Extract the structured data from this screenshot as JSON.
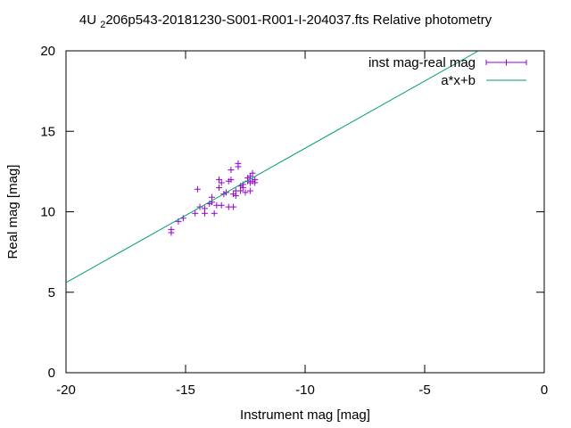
{
  "chart_data": {
    "type": "scatter",
    "title": {
      "prefix": "4U",
      "subscript": "2",
      "suffix": "206p543-20181230-S001-R001-I-204037.fts Relative photometry"
    },
    "xlabel": "Instrument mag [mag]",
    "ylabel": "Real mag [mag]",
    "xlim": [
      -20,
      0
    ],
    "ylim": [
      0,
      20
    ],
    "xticks": [
      -20,
      -15,
      -10,
      -5,
      0
    ],
    "yticks": [
      0,
      5,
      10,
      15,
      20
    ],
    "xtick_labels": [
      "-20",
      "-15",
      "-10",
      "-5",
      "0"
    ],
    "ytick_labels": [
      "0",
      "5",
      "10",
      "15",
      "20"
    ],
    "grid": false,
    "legend_position": "top-right",
    "series": [
      {
        "name": "inst mag-real mag",
        "kind": "points",
        "color": "#9400d3",
        "marker": "plus",
        "points": [
          [
            -15.6,
            8.9
          ],
          [
            -15.6,
            8.7
          ],
          [
            -15.3,
            9.4
          ],
          [
            -15.1,
            9.6
          ],
          [
            -14.6,
            9.9
          ],
          [
            -14.5,
            11.4
          ],
          [
            -14.4,
            10.3
          ],
          [
            -14.2,
            9.9
          ],
          [
            -14.2,
            10.2
          ],
          [
            -14.0,
            10.5
          ],
          [
            -13.9,
            10.6
          ],
          [
            -13.9,
            10.9
          ],
          [
            -13.8,
            9.9
          ],
          [
            -13.7,
            10.4
          ],
          [
            -13.6,
            11.5
          ],
          [
            -13.6,
            12.0
          ],
          [
            -13.5,
            11.8
          ],
          [
            -13.5,
            10.4
          ],
          [
            -13.4,
            11.1
          ],
          [
            -13.3,
            11.2
          ],
          [
            -13.2,
            11.9
          ],
          [
            -13.2,
            10.3
          ],
          [
            -13.1,
            12.0
          ],
          [
            -13.1,
            12.6
          ],
          [
            -13.0,
            11.1
          ],
          [
            -13.0,
            10.3
          ],
          [
            -12.9,
            11.0
          ],
          [
            -12.9,
            11.3
          ],
          [
            -12.8,
            13.0
          ],
          [
            -12.8,
            12.8
          ],
          [
            -12.7,
            11.6
          ],
          [
            -12.7,
            11.3
          ],
          [
            -12.6,
            11.7
          ],
          [
            -12.6,
            11.5
          ],
          [
            -12.5,
            11.2
          ],
          [
            -12.4,
            11.9
          ],
          [
            -12.4,
            12.1
          ],
          [
            -12.3,
            11.8
          ],
          [
            -12.3,
            12.2
          ],
          [
            -12.3,
            11.3
          ],
          [
            -12.2,
            12.4
          ],
          [
            -12.2,
            11.9
          ],
          [
            -12.1,
            11.8
          ],
          [
            -12.1,
            12.0
          ]
        ]
      },
      {
        "name": "a*x+b",
        "kind": "line",
        "color": "#009e73",
        "x": [
          -20,
          -2.75
        ],
        "y": [
          5.6,
          20.0
        ]
      }
    ]
  }
}
